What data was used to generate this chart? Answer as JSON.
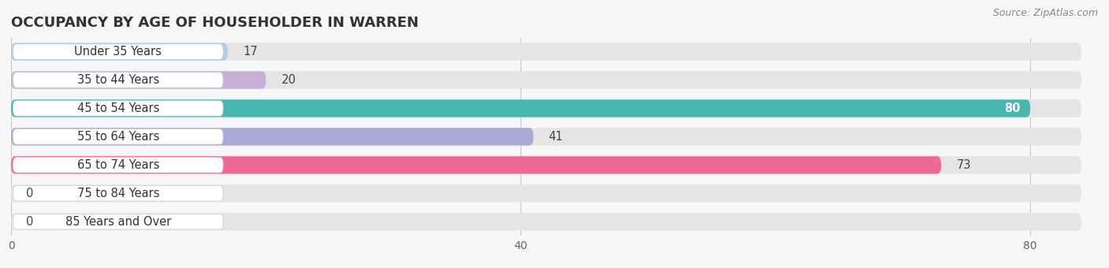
{
  "title": "OCCUPANCY BY AGE OF HOUSEHOLDER IN WARREN",
  "source": "Source: ZipAtlas.com",
  "categories": [
    "Under 35 Years",
    "35 to 44 Years",
    "45 to 54 Years",
    "55 to 64 Years",
    "65 to 74 Years",
    "75 to 84 Years",
    "85 Years and Over"
  ],
  "values": [
    17,
    20,
    80,
    41,
    73,
    0,
    0
  ],
  "bar_colors": [
    "#aecde8",
    "#c9aed6",
    "#45b8b0",
    "#a8aad8",
    "#f06898",
    "#f5c8a0",
    "#f0aaaa"
  ],
  "background_color": "#f7f7f7",
  "bar_background": "#e5e5e8",
  "xlim": [
    0,
    84
  ],
  "xticks": [
    0,
    40,
    80
  ],
  "title_fontsize": 13,
  "label_fontsize": 10.5,
  "tick_fontsize": 10,
  "source_fontsize": 9,
  "value_threshold_inside": 77
}
